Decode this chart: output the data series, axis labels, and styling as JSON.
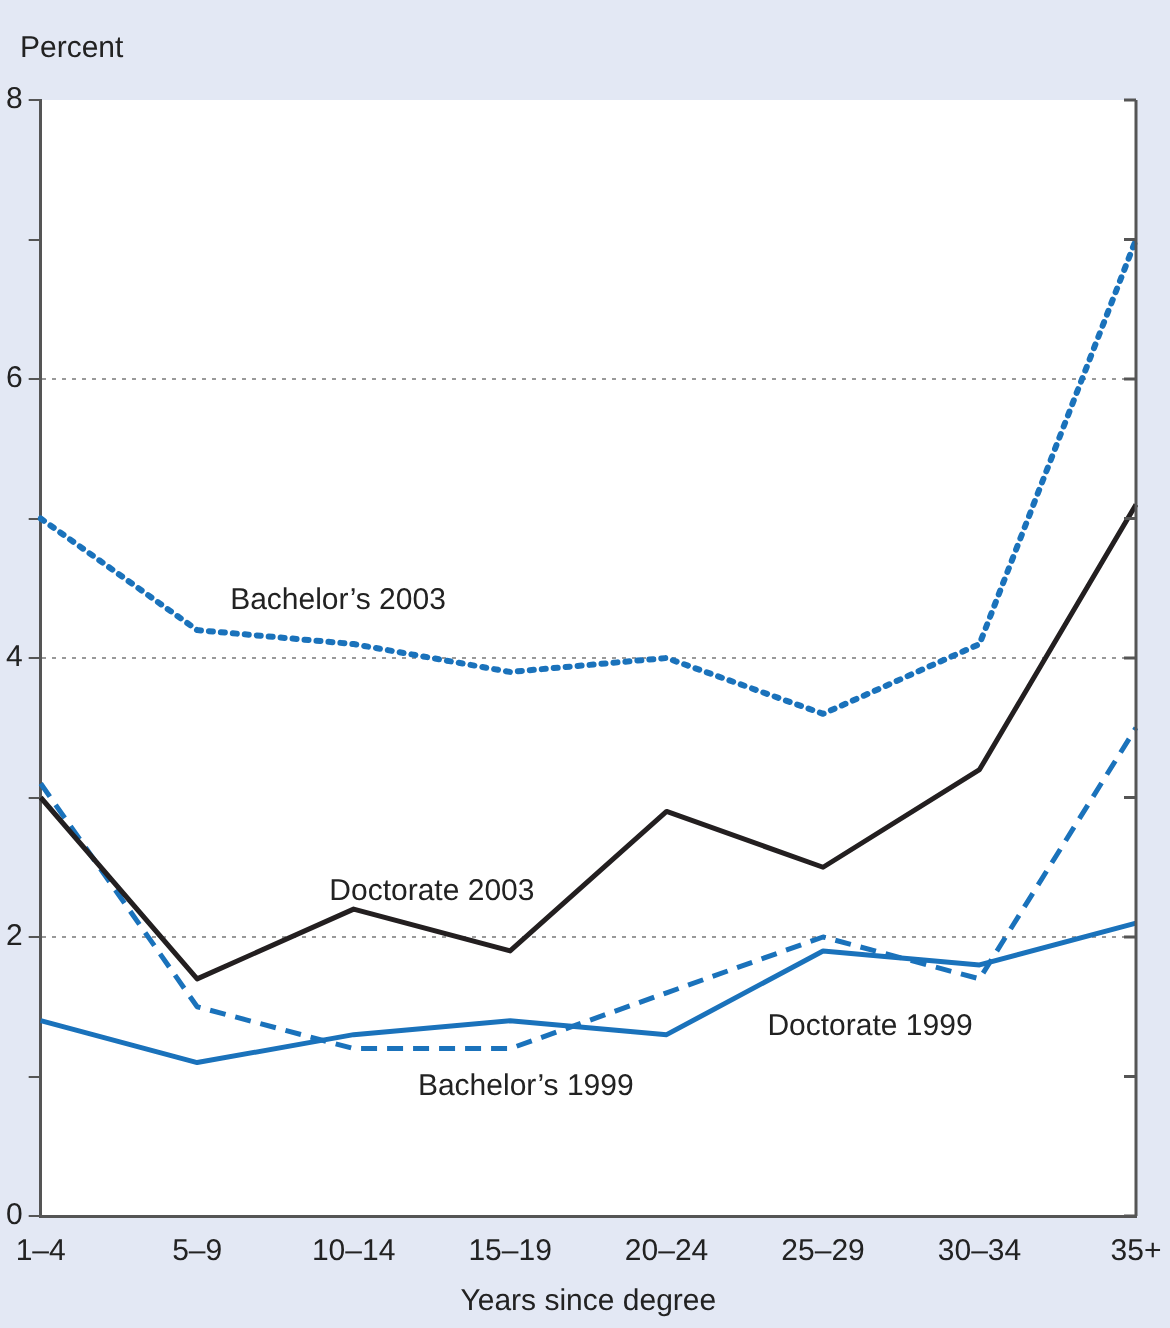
{
  "chart_data": {
    "type": "line",
    "ylabel": "Percent",
    "xlabel": "Years since degree",
    "categories": [
      "1–4",
      "5–9",
      "10–14",
      "15–19",
      "20–24",
      "25–29",
      "30–34",
      "35+"
    ],
    "series": [
      {
        "name": "Bachelor’s 2003",
        "color": "#1a72bb",
        "line_style": "dotted",
        "values": [
          5.0,
          4.2,
          4.1,
          3.9,
          4.0,
          3.6,
          4.1,
          7.0
        ]
      },
      {
        "name": "Doctorate 2003",
        "color": "#231f20",
        "line_style": "solid",
        "values": [
          3.0,
          1.7,
          2.2,
          1.9,
          2.9,
          2.5,
          3.2,
          5.1
        ]
      },
      {
        "name": "Bachelor’s 1999",
        "color": "#1a72bb",
        "line_style": "dashed",
        "values": [
          3.1,
          1.5,
          1.2,
          1.2,
          1.6,
          2.0,
          1.7,
          3.5
        ]
      },
      {
        "name": "Doctorate 1999",
        "color": "#1a72bb",
        "line_style": "solid",
        "values": [
          1.4,
          1.1,
          1.3,
          1.4,
          1.3,
          1.9,
          1.8,
          2.1
        ]
      }
    ],
    "ylim": [
      0,
      8
    ],
    "yticks": [
      0,
      {
        "value": 1,
        "label": null
      },
      2,
      {
        "value": 3,
        "label": null
      },
      4,
      {
        "value": 5,
        "label": null
      },
      6,
      {
        "value": 7,
        "label": null
      },
      8
    ],
    "grid": "y",
    "legend": false,
    "marker": "none"
  }
}
